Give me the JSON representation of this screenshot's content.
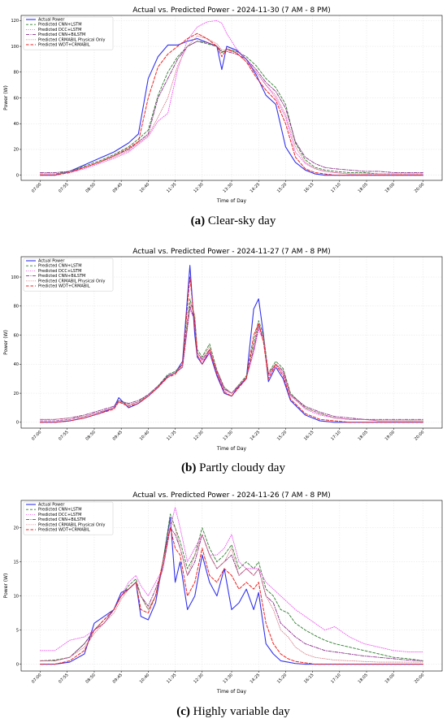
{
  "chart_data": [
    {
      "type": "line",
      "title": "Actual vs. Predicted Power - 2024-11-30 (7 AM - 8 PM)",
      "xlabel": "Time of Day",
      "ylabel": "Power (W)",
      "caption_letter": "(a)",
      "caption_text": " Clear-sky day",
      "x_ticks": [
        "07:00",
        "07:55",
        "08:50",
        "09:45",
        "10:40",
        "11:35",
        "12:30",
        "13:30",
        "14:25",
        "15:20",
        "16:15",
        "17:10",
        "18:05",
        "19:00",
        "20:00"
      ],
      "y_ticks": [
        0,
        20,
        40,
        60,
        80,
        100,
        120
      ],
      "ylim": [
        -4,
        124
      ],
      "grid": true,
      "legend": "top-left",
      "x": [
        "07:00",
        "07:30",
        "08:00",
        "08:30",
        "09:00",
        "09:30",
        "10:00",
        "10:20",
        "10:40",
        "11:00",
        "11:20",
        "11:40",
        "12:00",
        "12:20",
        "12:40",
        "13:00",
        "13:10",
        "13:20",
        "13:40",
        "14:00",
        "14:20",
        "14:40",
        "15:00",
        "15:20",
        "15:40",
        "16:00",
        "16:20",
        "16:40",
        "17:00",
        "17:30",
        "18:00",
        "18:30",
        "19:00",
        "19:30",
        "20:00"
      ],
      "series": [
        {
          "name": "Actual Power",
          "color": "#3333ee",
          "dash": "",
          "width": 1.1,
          "values": [
            0,
            0,
            3,
            8,
            13,
            18,
            25,
            32,
            75,
            92,
            101,
            101,
            104,
            106,
            103,
            100,
            82,
            100,
            97,
            90,
            78,
            62,
            55,
            22,
            10,
            4,
            1,
            0,
            0,
            0,
            0,
            0,
            0,
            0,
            0
          ]
        },
        {
          "name": "Predicted CNN+LSTM",
          "color": "#2e7d2e",
          "dash": "3,2",
          "width": 0.9,
          "values": [
            1,
            1,
            3,
            7,
            11,
            16,
            22,
            28,
            35,
            62,
            80,
            92,
            100,
            104,
            102,
            100,
            95,
            98,
            96,
            92,
            85,
            75,
            68,
            55,
            25,
            12,
            6,
            4,
            3,
            2,
            2,
            1,
            1,
            1,
            1
          ]
        },
        {
          "name": "Predicted DCC+LSTM",
          "color": "#ee55ee",
          "dash": "1,1.5",
          "width": 0.9,
          "values": [
            1,
            1,
            2,
            5,
            9,
            13,
            18,
            24,
            30,
            42,
            48,
            82,
            105,
            115,
            119,
            120,
            118,
            110,
            98,
            90,
            80,
            70,
            60,
            45,
            18,
            9,
            5,
            3,
            2,
            1,
            1,
            1,
            1,
            1,
            1
          ]
        },
        {
          "name": "Predicted CNN+BiLSTM",
          "color": "#8b2d8b",
          "dash": "4,1.5,1,1.5",
          "width": 0.9,
          "values": [
            2,
            2,
            3,
            6,
            10,
            15,
            20,
            26,
            32,
            60,
            75,
            90,
            100,
            104,
            103,
            100,
            96,
            96,
            94,
            90,
            82,
            72,
            65,
            52,
            26,
            14,
            9,
            6,
            5,
            4,
            3,
            3,
            2,
            2,
            2
          ]
        },
        {
          "name": "Predicted CRMABIL Physical Only",
          "color": "#d26f7a",
          "dash": "0.8,1.4",
          "width": 0.8,
          "values": [
            1,
            1,
            2,
            6,
            10,
            14,
            19,
            25,
            31,
            45,
            60,
            85,
            100,
            108,
            106,
            102,
            97,
            97,
            95,
            88,
            80,
            70,
            62,
            47,
            22,
            10,
            5,
            3,
            2,
            1,
            1,
            1,
            1,
            1,
            1
          ]
        },
        {
          "name": "Predicted WDT+CRMABIL",
          "color": "#ee2222",
          "dash": "3.5,2",
          "width": 1.0,
          "values": [
            0,
            0,
            2,
            6,
            10,
            15,
            21,
            26,
            60,
            84,
            94,
            100,
            106,
            110,
            106,
            100,
            92,
            98,
            95,
            88,
            76,
            66,
            58,
            40,
            14,
            5,
            2,
            1,
            0,
            0,
            0,
            0,
            0,
            0,
            0
          ]
        }
      ]
    },
    {
      "type": "line",
      "title": "Actual vs. Predicted Power - 2024-11-27 (7 AM - 8 PM)",
      "xlabel": "Time of Day",
      "ylabel": "Power (W)",
      "caption_letter": "(b)",
      "caption_text": " Partly cloudy day",
      "x_ticks": [
        "07:00",
        "07:55",
        "08:50",
        "09:45",
        "10:40",
        "11:35",
        "12:30",
        "13:30",
        "14:25",
        "15:20",
        "16:15",
        "17:10",
        "18:05",
        "19:00",
        "20:00"
      ],
      "y_ticks": [
        0,
        20,
        40,
        60,
        80,
        100
      ],
      "ylim": [
        -4,
        114
      ],
      "grid": true,
      "legend": "top-left",
      "x": [
        "07:00",
        "07:30",
        "08:00",
        "08:30",
        "09:00",
        "09:30",
        "09:40",
        "10:00",
        "10:20",
        "10:40",
        "11:00",
        "11:20",
        "11:35",
        "11:50",
        "12:05",
        "12:15",
        "12:20",
        "12:30",
        "12:45",
        "13:00",
        "13:15",
        "13:30",
        "13:45",
        "14:00",
        "14:15",
        "14:25",
        "14:35",
        "14:45",
        "15:00",
        "15:15",
        "15:30",
        "15:45",
        "16:00",
        "16:30",
        "17:00",
        "17:30",
        "18:00",
        "18:30",
        "19:00",
        "19:30",
        "20:00"
      ],
      "series": [
        {
          "name": "Actual Power",
          "color": "#3333ee",
          "dash": "",
          "width": 1.1,
          "values": [
            0,
            0,
            1,
            3,
            6,
            10,
            17,
            10,
            13,
            18,
            24,
            32,
            34,
            42,
            108,
            60,
            45,
            40,
            48,
            32,
            20,
            18,
            25,
            30,
            78,
            85,
            60,
            28,
            38,
            30,
            15,
            10,
            5,
            1,
            0,
            0,
            0,
            0,
            0,
            0,
            0
          ]
        },
        {
          "name": "Predicted CNN+LSTM",
          "color": "#2e7d2e",
          "dash": "3,2",
          "width": 0.9,
          "values": [
            1,
            1,
            2,
            4,
            7,
            10,
            15,
            12,
            14,
            19,
            25,
            33,
            35,
            40,
            85,
            72,
            50,
            45,
            54,
            36,
            24,
            20,
            26,
            32,
            55,
            70,
            60,
            34,
            42,
            37,
            20,
            15,
            10,
            6,
            3,
            2,
            2,
            1,
            1,
            1,
            1
          ]
        },
        {
          "name": "Predicted DCC+LSTM",
          "color": "#ee55ee",
          "dash": "1,1.5",
          "width": 0.9,
          "values": [
            1,
            1,
            2,
            4,
            7,
            10,
            14,
            12,
            14,
            18,
            24,
            32,
            34,
            38,
            78,
            70,
            46,
            42,
            48,
            34,
            22,
            20,
            24,
            30,
            48,
            64,
            56,
            32,
            38,
            34,
            18,
            14,
            9,
            5,
            3,
            2,
            2,
            1,
            1,
            1,
            1
          ]
        },
        {
          "name": "Predicted CNN+BiLSTM",
          "color": "#8b2d8b",
          "dash": "4,1.5,1,1.5",
          "width": 0.9,
          "values": [
            2,
            2,
            3,
            5,
            8,
            11,
            15,
            13,
            15,
            19,
            25,
            32,
            34,
            38,
            80,
            70,
            48,
            43,
            50,
            35,
            23,
            20,
            25,
            31,
            50,
            66,
            58,
            33,
            40,
            35,
            19,
            15,
            11,
            7,
            4,
            3,
            2,
            2,
            2,
            2,
            2
          ]
        },
        {
          "name": "Predicted CRMABIL Physical Only",
          "color": "#d26f7a",
          "dash": "0.8,1.4",
          "width": 0.8,
          "values": [
            2,
            2,
            3,
            4,
            7,
            10,
            14,
            12,
            14,
            18,
            24,
            31,
            34,
            40,
            82,
            74,
            48,
            44,
            52,
            36,
            24,
            20,
            26,
            31,
            52,
            68,
            58,
            34,
            40,
            36,
            19,
            14,
            10,
            6,
            3,
            2,
            2,
            1,
            1,
            1,
            1
          ]
        },
        {
          "name": "Predicted WDT+CRMABIL",
          "color": "#ee2222",
          "dash": "3.5,2",
          "width": 1.0,
          "values": [
            0,
            0,
            1,
            3,
            6,
            9,
            14,
            11,
            13,
            18,
            24,
            31,
            33,
            40,
            100,
            66,
            46,
            40,
            50,
            33,
            21,
            18,
            24,
            30,
            60,
            68,
            55,
            30,
            40,
            32,
            16,
            11,
            6,
            2,
            1,
            0,
            0,
            0,
            0,
            0,
            0
          ]
        }
      ]
    },
    {
      "type": "line",
      "title": "Actual vs. Predicted Power - 2024-11-26 (7 AM - 8 PM)",
      "xlabel": "Time of Day",
      "ylabel": "Power (W)",
      "caption_letter": "(c)",
      "caption_text": " Highly variable day",
      "x_ticks": [
        "07:00",
        "07:55",
        "08:50",
        "09:45",
        "10:40",
        "11:35",
        "12:30",
        "13:30",
        "14:25",
        "15:20",
        "16:15",
        "17:10",
        "18:05",
        "19:00",
        "20:00"
      ],
      "y_ticks": [
        0,
        5,
        10,
        15,
        20
      ],
      "ylim": [
        -1,
        24
      ],
      "grid": true,
      "legend": "top-left",
      "x": [
        "07:00",
        "07:30",
        "08:00",
        "08:30",
        "08:50",
        "09:10",
        "09:30",
        "09:45",
        "10:00",
        "10:15",
        "10:25",
        "10:40",
        "10:55",
        "11:10",
        "11:25",
        "11:35",
        "11:45",
        "12:00",
        "12:15",
        "12:30",
        "12:45",
        "13:00",
        "13:15",
        "13:30",
        "13:45",
        "14:00",
        "14:15",
        "14:25",
        "14:40",
        "14:55",
        "15:10",
        "15:25",
        "15:40",
        "16:00",
        "16:20",
        "16:40",
        "17:00",
        "17:30",
        "18:00",
        "18:30",
        "19:00",
        "19:30",
        "20:00"
      ],
      "series": [
        {
          "name": "Actual Power",
          "color": "#3333ee",
          "dash": "",
          "width": 1.1,
          "values": [
            0,
            0,
            0.3,
            1.5,
            6,
            7,
            8,
            10.5,
            11,
            12,
            7,
            6.5,
            9,
            15,
            21.5,
            12,
            15,
            8,
            10,
            16,
            12,
            10,
            14,
            8,
            9,
            11,
            8,
            10.5,
            3,
            1.5,
            0.5,
            0.3,
            0.1,
            0,
            0,
            0,
            0,
            0,
            0,
            0,
            0,
            0,
            0
          ]
        },
        {
          "name": "Predicted CNN+LSTM",
          "color": "#2e7d2e",
          "dash": "3,2",
          "width": 0.9,
          "values": [
            0.5,
            0.6,
            1,
            3,
            5,
            6.5,
            8,
            10,
            11.5,
            12.5,
            10,
            8,
            10,
            15,
            22,
            20,
            18,
            14,
            16,
            20,
            17,
            15,
            16,
            17.5,
            14,
            15,
            14,
            15,
            11,
            10,
            8,
            7.5,
            6,
            5,
            4.2,
            3.5,
            3,
            2.5,
            2,
            1.5,
            1,
            0.8,
            0.5
          ]
        },
        {
          "name": "Predicted DCC+LSTM",
          "color": "#ee55ee",
          "dash": "1,1.5",
          "width": 0.9,
          "values": [
            2,
            2,
            3.5,
            4,
            5,
            6,
            8,
            10,
            12,
            13,
            11.5,
            10,
            12,
            14,
            20,
            23,
            20,
            15,
            17,
            19,
            16,
            16,
            17,
            19,
            15,
            14,
            14,
            14,
            12,
            11,
            10,
            9,
            8,
            7,
            6,
            5,
            5.5,
            4,
            3,
            2.5,
            2,
            1.8,
            1.8
          ]
        },
        {
          "name": "Predicted CNN+BiLSTM",
          "color": "#8b2d8b",
          "dash": "4,1.5,1,1.5",
          "width": 0.9,
          "values": [
            0.5,
            0.5,
            1,
            3,
            5,
            6,
            8,
            10,
            11,
            12,
            10,
            8.5,
            11,
            14,
            20,
            19,
            17,
            13,
            15,
            19,
            16,
            14,
            15,
            16,
            13,
            14,
            13,
            14,
            10,
            9,
            6,
            5,
            4,
            3,
            2.5,
            2,
            1.8,
            1.5,
            1.2,
            1,
            0.8,
            0.6,
            0.5
          ]
        },
        {
          "name": "Predicted CRMABIL Physical Only",
          "color": "#d26f7a",
          "dash": "0.8,1.4",
          "width": 0.8,
          "values": [
            0.5,
            0.5,
            1,
            2.5,
            4.5,
            6,
            7.5,
            9.5,
            11,
            12,
            10,
            8,
            10,
            14,
            21,
            20,
            17,
            13,
            16,
            19,
            16,
            14,
            15,
            17,
            13,
            14,
            13,
            14,
            10,
            8,
            5,
            4,
            2.5,
            1.5,
            1,
            0.8,
            0.6,
            0.5,
            0.4,
            0.3,
            0.3,
            0.3,
            0.3
          ]
        },
        {
          "name": "Predicted WDT+CRMABIL",
          "color": "#ee2222",
          "dash": "3.5,2",
          "width": 1.0,
          "values": [
            0,
            0,
            0.5,
            2,
            5,
            6.5,
            8,
            10,
            11,
            12,
            8,
            7.5,
            10,
            15,
            20,
            17,
            16,
            10,
            12,
            17,
            13,
            12,
            14,
            13,
            11,
            12,
            11,
            12,
            6,
            3,
            1.5,
            0.8,
            0.4,
            0.2,
            0,
            0,
            0,
            0,
            0,
            0,
            0,
            0,
            0
          ]
        }
      ]
    }
  ]
}
